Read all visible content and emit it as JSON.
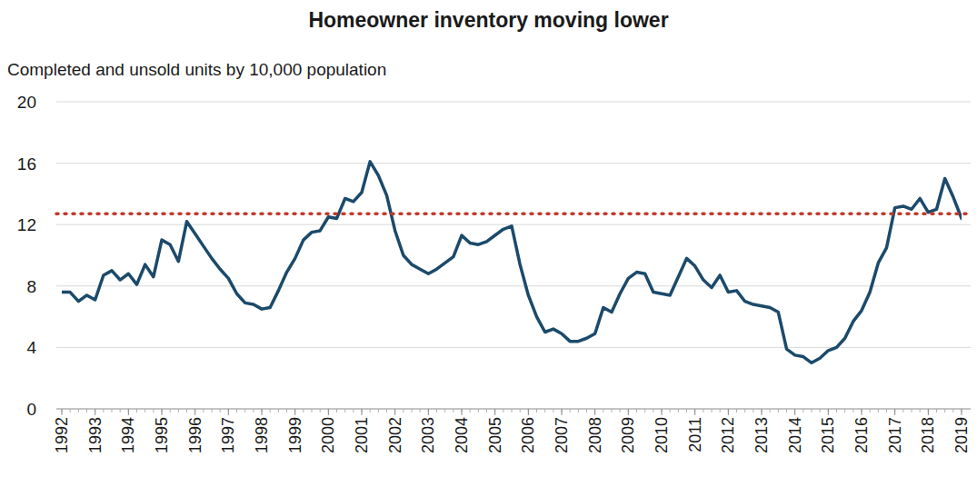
{
  "chart_data": {
    "type": "line",
    "title": "Homeowner inventory moving lower",
    "ylabel": "Completed and unsold units by 10,000 population",
    "color": "#1b4a6b",
    "x": [
      1992,
      1992.25,
      1992.5,
      1992.75,
      1993,
      1993.25,
      1993.5,
      1993.75,
      1994,
      1994.25,
      1994.5,
      1994.75,
      1995,
      1995.25,
      1995.5,
      1995.75,
      1996,
      1996.25,
      1996.5,
      1996.75,
      1997,
      1997.25,
      1997.5,
      1997.75,
      1998,
      1998.25,
      1998.5,
      1998.75,
      1999,
      1999.25,
      1999.5,
      1999.75,
      2000,
      2000.25,
      2000.5,
      2000.75,
      2001,
      2001.25,
      2001.5,
      2001.75,
      2002,
      2002.25,
      2002.5,
      2002.75,
      2003,
      2003.25,
      2003.5,
      2003.75,
      2004,
      2004.25,
      2004.5,
      2004.75,
      2005,
      2005.25,
      2005.5,
      2005.75,
      2006,
      2006.25,
      2006.5,
      2006.75,
      2007,
      2007.25,
      2007.5,
      2007.75,
      2008,
      2008.25,
      2008.5,
      2008.75,
      2009,
      2009.25,
      2009.5,
      2009.75,
      2010,
      2010.25,
      2010.5,
      2010.75,
      2011,
      2011.25,
      2011.5,
      2011.75,
      2012,
      2012.25,
      2012.5,
      2012.75,
      2013,
      2013.25,
      2013.5,
      2013.75,
      2014,
      2014.25,
      2014.5,
      2014.75,
      2015,
      2015.25,
      2015.5,
      2015.75,
      2016,
      2016.25,
      2016.5,
      2016.75,
      2017,
      2017.25,
      2017.5,
      2017.75,
      2018,
      2018.25,
      2018.5,
      2018.75,
      2019
    ],
    "values": [
      7.6,
      7.6,
      7.0,
      7.4,
      7.1,
      8.7,
      9.0,
      8.4,
      8.8,
      8.1,
      9.4,
      8.6,
      11.0,
      10.7,
      9.6,
      12.2,
      11.4,
      10.6,
      9.8,
      9.1,
      8.5,
      7.5,
      6.9,
      6.8,
      6.5,
      6.6,
      7.7,
      8.9,
      9.8,
      11.0,
      11.5,
      11.6,
      12.5,
      12.4,
      13.7,
      13.5,
      14.1,
      16.1,
      15.2,
      13.9,
      11.6,
      10.0,
      9.4,
      9.1,
      8.8,
      9.1,
      9.5,
      9.9,
      11.3,
      10.8,
      10.7,
      10.9,
      11.3,
      11.7,
      11.9,
      9.4,
      7.4,
      6.0,
      5.0,
      5.2,
      4.9,
      4.4,
      4.4,
      4.6,
      4.9,
      6.6,
      6.3,
      7.5,
      8.5,
      8.9,
      8.8,
      7.6,
      7.5,
      7.4,
      8.6,
      9.8,
      9.3,
      8.4,
      7.9,
      8.7,
      7.6,
      7.7,
      7.0,
      6.8,
      6.7,
      6.6,
      6.3,
      3.9,
      3.5,
      3.4,
      3.0,
      3.3,
      3.8,
      4.0,
      4.6,
      5.7,
      6.4,
      7.6,
      9.5,
      10.5,
      13.1,
      13.2,
      13.0,
      13.7,
      12.8,
      13.0,
      15.0,
      13.8,
      12.4
    ],
    "reference_line": {
      "value": 12.7,
      "color": "#c0392b",
      "line_style": "dotted"
    },
    "xlim": [
      1992,
      2019
    ],
    "xticks": [
      1992,
      1993,
      1994,
      1995,
      1996,
      1997,
      1998,
      1999,
      2000,
      2001,
      2002,
      2003,
      2004,
      2005,
      2006,
      2007,
      2008,
      2009,
      2010,
      2011,
      2012,
      2013,
      2014,
      2015,
      2016,
      2017,
      2018,
      2019
    ],
    "ylim": [
      0,
      20
    ],
    "yticks": [
      0,
      4,
      8,
      12,
      16,
      20
    ],
    "grid": true
  }
}
